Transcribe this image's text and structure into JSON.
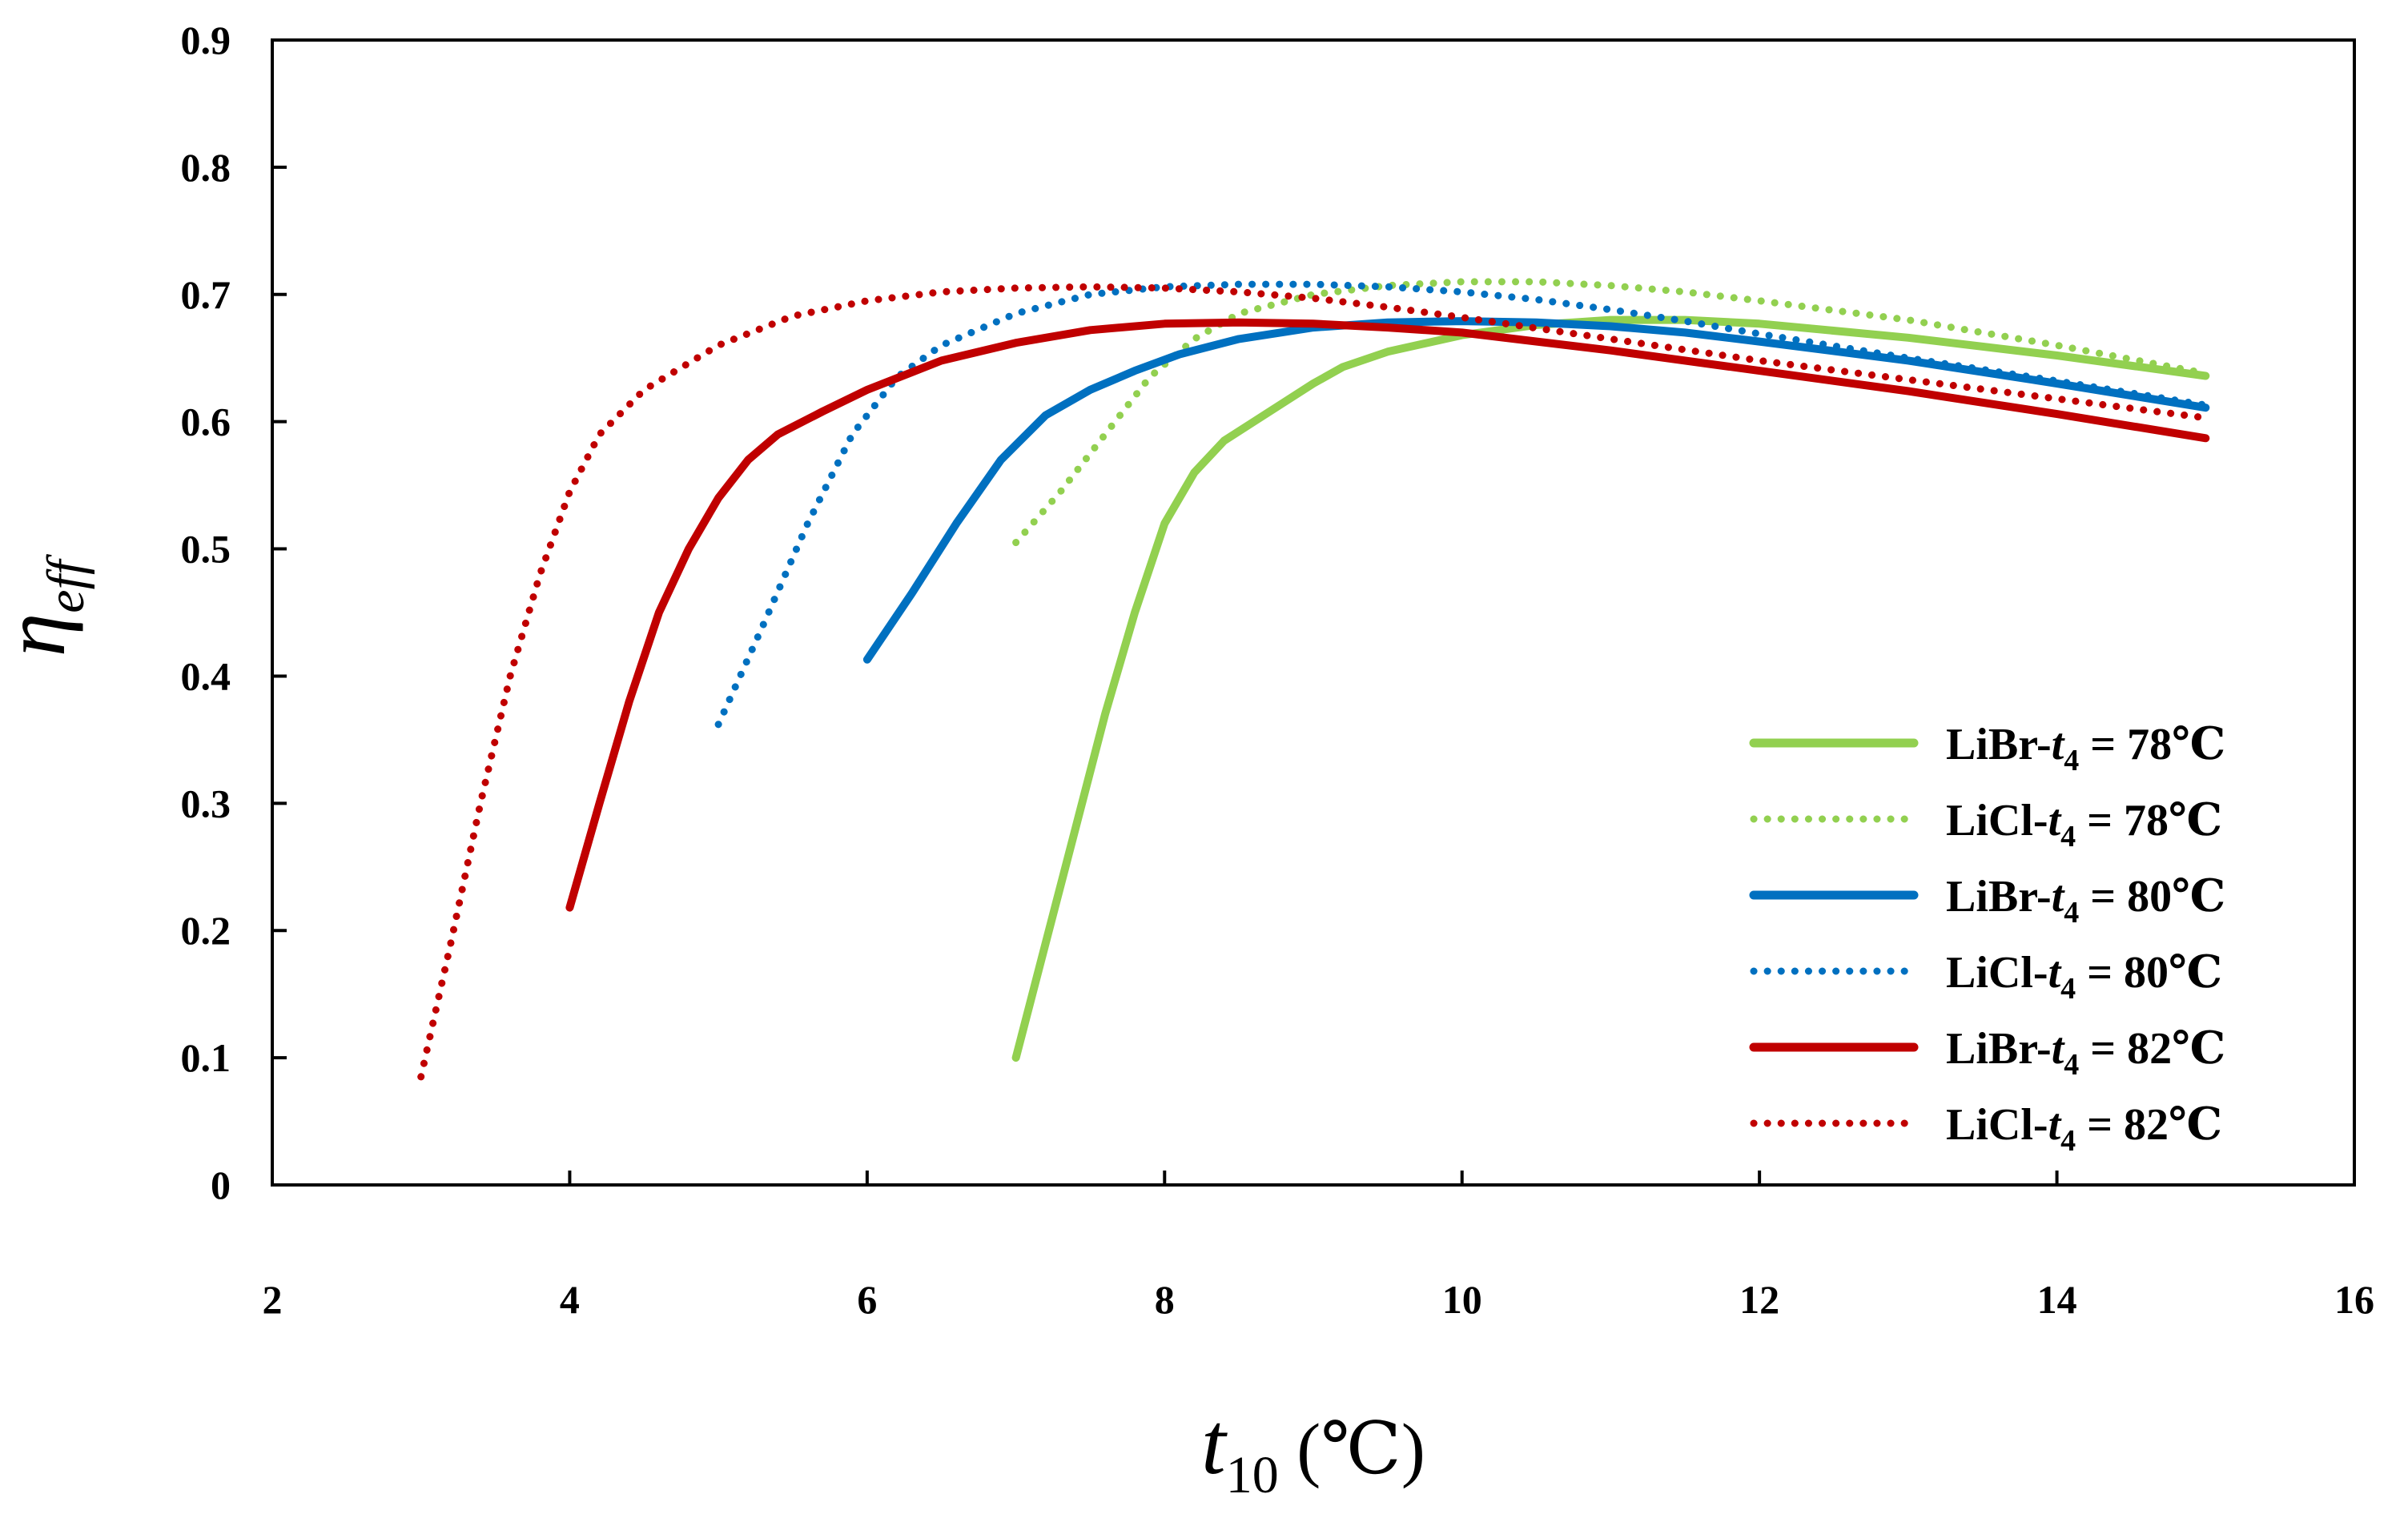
{
  "chart_data": {
    "type": "line",
    "title": "",
    "xlabel": {
      "main": "t",
      "sub": "10",
      "unit": " (℃)"
    },
    "ylabel": {
      "main": "η",
      "sub": "eff"
    },
    "xlim": [
      2,
      16
    ],
    "ylim": [
      0,
      0.9
    ],
    "xticks": [
      2,
      4,
      6,
      8,
      10,
      12,
      14,
      16
    ],
    "yticks": [
      0,
      0.1,
      0.2,
      0.3,
      0.4,
      0.5,
      0.6,
      0.7,
      0.8,
      0.9
    ],
    "grid": false,
    "legend_position": "bottom-right",
    "series": [
      {
        "name": "LiBr-t4 = 78℃",
        "prefix": "LiBr-",
        "var": "t",
        "sub": "4",
        "suffix": " = 78℃",
        "color": "#92D050",
        "style": "solid",
        "x": [
          7.0,
          7.2,
          7.4,
          7.6,
          7.8,
          8.0,
          8.2,
          8.4,
          8.6,
          8.8,
          9.0,
          9.2,
          9.5,
          10.0,
          10.5,
          11.0,
          11.5,
          12.0,
          13.0,
          14.0,
          15.0
        ],
        "y": [
          0.1,
          0.19,
          0.28,
          0.37,
          0.45,
          0.52,
          0.56,
          0.585,
          0.6,
          0.615,
          0.63,
          0.643,
          0.655,
          0.668,
          0.676,
          0.68,
          0.68,
          0.677,
          0.666,
          0.652,
          0.636
        ]
      },
      {
        "name": "LiCl-t4 = 78℃",
        "prefix": "LiCl-",
        "var": "t",
        "sub": "4",
        "suffix": " = 78℃",
        "color": "#92D050",
        "style": "dotted",
        "x": [
          7.0,
          7.3,
          7.6,
          7.9,
          8.2,
          8.5,
          9.0,
          9.5,
          10.0,
          10.5,
          11.0,
          11.5,
          12.0,
          13.0,
          14.0,
          15.0
        ],
        "y": [
          0.505,
          0.545,
          0.59,
          0.635,
          0.665,
          0.685,
          0.7,
          0.707,
          0.71,
          0.71,
          0.707,
          0.702,
          0.695,
          0.68,
          0.66,
          0.638
        ]
      },
      {
        "name": "LiBr-t4 = 80℃",
        "prefix": "LiBr-",
        "var": "t",
        "sub": "4",
        "suffix": " = 80℃",
        "color": "#0070C0",
        "style": "solid",
        "x": [
          6.0,
          6.3,
          6.6,
          6.9,
          7.2,
          7.5,
          7.8,
          8.1,
          8.5,
          9.0,
          9.5,
          10.0,
          10.5,
          11.0,
          11.5,
          12.0,
          13.0,
          14.0,
          15.0
        ],
        "y": [
          0.413,
          0.465,
          0.52,
          0.57,
          0.605,
          0.625,
          0.64,
          0.653,
          0.665,
          0.674,
          0.678,
          0.679,
          0.678,
          0.675,
          0.67,
          0.663,
          0.648,
          0.63,
          0.611
        ]
      },
      {
        "name": "LiCl-t4 = 80℃",
        "prefix": "LiCl-",
        "var": "t",
        "sub": "4",
        "suffix": " = 80℃",
        "color": "#0070C0",
        "style": "dotted",
        "x": [
          5.0,
          5.3,
          5.6,
          5.9,
          6.2,
          6.5,
          7.0,
          7.5,
          8.0,
          8.5,
          9.0,
          9.5,
          10.0,
          10.5,
          11.0,
          11.5,
          12.0,
          13.0,
          14.0,
          15.0
        ],
        "y": [
          0.362,
          0.44,
          0.52,
          0.59,
          0.635,
          0.66,
          0.685,
          0.7,
          0.706,
          0.708,
          0.708,
          0.706,
          0.702,
          0.696,
          0.688,
          0.679,
          0.669,
          0.65,
          0.632,
          0.613
        ]
      },
      {
        "name": "LiBr-t4 = 82℃",
        "prefix": "LiBr-",
        "var": "t",
        "sub": "4",
        "suffix": " = 82℃",
        "color": "#C00000",
        "style": "solid",
        "x": [
          4.0,
          4.2,
          4.4,
          4.6,
          4.8,
          5.0,
          5.2,
          5.4,
          5.7,
          6.0,
          6.5,
          7.0,
          7.5,
          8.0,
          8.5,
          9.0,
          9.5,
          10.0,
          11.0,
          12.0,
          13.0,
          14.0,
          15.0
        ],
        "y": [
          0.218,
          0.3,
          0.38,
          0.45,
          0.5,
          0.54,
          0.57,
          0.59,
          0.608,
          0.625,
          0.648,
          0.662,
          0.672,
          0.677,
          0.678,
          0.677,
          0.674,
          0.67,
          0.656,
          0.64,
          0.624,
          0.606,
          0.587
        ]
      },
      {
        "name": "LiCl-t4 = 82℃",
        "prefix": "LiCl-",
        "var": "t",
        "sub": "4",
        "suffix": " = 82℃",
        "color": "#C00000",
        "style": "dotted",
        "x": [
          3.0,
          3.2,
          3.4,
          3.6,
          3.8,
          4.0,
          4.2,
          4.5,
          5.0,
          5.5,
          6.0,
          6.5,
          7.0,
          7.5,
          8.0,
          8.5,
          9.0,
          9.5,
          10.0,
          11.0,
          12.0,
          13.0,
          14.0,
          15.0
        ],
        "y": [
          0.085,
          0.19,
          0.3,
          0.4,
          0.48,
          0.545,
          0.59,
          0.625,
          0.66,
          0.683,
          0.695,
          0.702,
          0.705,
          0.706,
          0.705,
          0.702,
          0.697,
          0.69,
          0.682,
          0.665,
          0.648,
          0.633,
          0.618,
          0.603
        ]
      }
    ]
  }
}
